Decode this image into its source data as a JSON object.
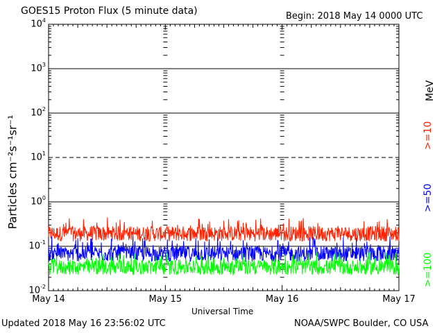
{
  "header": {
    "title": "GOES15 Proton Flux (5 minute data)",
    "begin": "Begin: 2018 May 14 0000 UTC"
  },
  "footer": {
    "updated": "Updated 2018 May 16 23:56:02 UTC",
    "credit": "NOAA/SWPC Boulder, CO USA"
  },
  "chart_data": {
    "type": "line",
    "title": "GOES15 Proton Flux (5 minute data)",
    "xlabel": "Universal Time",
    "ylabel": "Particles cm⁻²s⁻¹sr⁻¹",
    "y_scale": "log",
    "ylim": [
      0.01,
      10000
    ],
    "xlim": [
      "2018-05-14 00:00",
      "2018-05-17 00:00"
    ],
    "x_ticks": [
      "May 14",
      "May 15",
      "May 16",
      "May 17"
    ],
    "y_ticks": [
      {
        "base": "10",
        "exp": "4"
      },
      {
        "base": "10",
        "exp": "3"
      },
      {
        "base": "10",
        "exp": "2"
      },
      {
        "base": "10",
        "exp": "1"
      },
      {
        "base": "10",
        "exp": "0"
      },
      {
        "base": "10",
        "exp": "-1"
      },
      {
        "base": "10",
        "exp": "-2"
      }
    ],
    "unit_label": "MeV",
    "legend_position": "right",
    "grid": true,
    "series": [
      {
        "name": ">=10",
        "color": "#ff2000",
        "typical": 0.2,
        "range": [
          0.12,
          0.45
        ]
      },
      {
        "name": ">=50",
        "color": "#0000ff",
        "typical": 0.07,
        "range": [
          0.045,
          0.17
        ]
      },
      {
        "name": ">=100",
        "color": "#00ff00",
        "typical": 0.035,
        "range": [
          0.02,
          0.075
        ]
      }
    ]
  }
}
